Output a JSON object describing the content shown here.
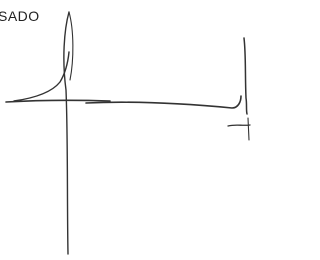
{
  "label": "SADO"
}
